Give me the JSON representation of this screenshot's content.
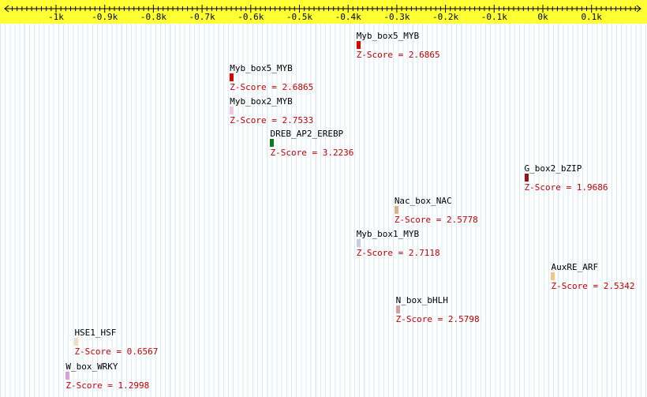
{
  "axis": {
    "ticks": [
      {
        "label": "-1k",
        "value": -1000
      },
      {
        "label": "-0.9k",
        "value": -900
      },
      {
        "label": "-0.8k",
        "value": -800
      },
      {
        "label": "-0.7k",
        "value": -700
      },
      {
        "label": "-0.6k",
        "value": -600
      },
      {
        "label": "-0.5k",
        "value": -500
      },
      {
        "label": "-0.4k",
        "value": -400
      },
      {
        "label": "-0.3k",
        "value": -300
      },
      {
        "label": "-0.2k",
        "value": -200
      },
      {
        "label": "-0.1k",
        "value": -100
      },
      {
        "label": "0k",
        "value": 0
      },
      {
        "label": "0.1k",
        "value": 100
      }
    ],
    "colors": {
      "bar": "#ffff33",
      "line": "#000000",
      "grid": "#d7ecf6"
    }
  },
  "sites": [
    {
      "name": "Myb_box5_MYB",
      "score": "Z-Score = 2.6865",
      "position": -383,
      "color": "#e00000"
    },
    {
      "name": "Myb_box5_MYB",
      "score": "Z-Score = 2.6865",
      "position": -643,
      "color": "#e00000"
    },
    {
      "name": "Myb_box2_MYB",
      "score": "Z-Score = 2.7533",
      "position": -643,
      "color": "#f2c4e6"
    },
    {
      "name": "DREB_AP2_EREBP",
      "score": "Z-Score = 3.2236",
      "position": -560,
      "color": "#0a7a1a"
    },
    {
      "name": "G_box2_bZIP",
      "score": "Z-Score = 1.9686",
      "position": -38,
      "color": "#8b1a1a"
    },
    {
      "name": "Nac_box_NAC",
      "score": "Z-Score = 2.5778",
      "position": -305,
      "color": "#d9b38c"
    },
    {
      "name": "Myb_box1_MYB",
      "score": "Z-Score = 2.7118",
      "position": -383,
      "color": "#c9c9e8"
    },
    {
      "name": "AuxRE_ARF",
      "score": "Z-Score = 2.5342",
      "position": 17,
      "color": "#f5c77e"
    },
    {
      "name": "N_box_bHLH",
      "score": "Z-Score = 2.5798",
      "position": -302,
      "color": "#d4a0a0"
    },
    {
      "name": "HSE1_HSF",
      "score": "Z-Score = 0.6567",
      "position": -962,
      "color": "#f3dcc0"
    },
    {
      "name": "W_box_WRKY",
      "score": "Z-Score = 1.2998",
      "position": -980,
      "color": "#d9a0d9"
    }
  ]
}
